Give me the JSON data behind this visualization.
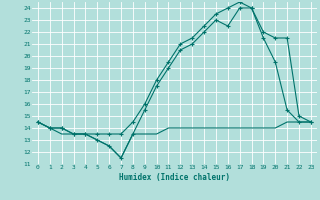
{
  "xlabel": "Humidex (Indice chaleur)",
  "background_color": "#b2dfdb",
  "grid_color": "#ffffff",
  "line_color": "#00736b",
  "xlim": [
    -0.5,
    23.5
  ],
  "ylim": [
    11,
    24.5
  ],
  "xticks": [
    0,
    1,
    2,
    3,
    4,
    5,
    6,
    7,
    8,
    9,
    10,
    11,
    12,
    13,
    14,
    15,
    16,
    17,
    18,
    19,
    20,
    21,
    22,
    23
  ],
  "yticks": [
    11,
    12,
    13,
    14,
    15,
    16,
    17,
    18,
    19,
    20,
    21,
    22,
    23,
    24
  ],
  "series1_x": [
    0,
    1,
    2,
    3,
    4,
    5,
    6,
    7,
    8,
    9,
    10,
    11,
    12,
    13,
    14,
    15,
    16,
    17,
    18,
    19,
    20,
    21,
    22,
    23
  ],
  "series1_y": [
    14.5,
    14.0,
    14.0,
    13.5,
    13.5,
    13.0,
    12.5,
    11.5,
    13.5,
    15.5,
    17.5,
    19.0,
    20.5,
    21.0,
    22.0,
    23.0,
    22.5,
    24.0,
    24.0,
    21.5,
    19.5,
    15.5,
    14.5,
    14.5
  ],
  "series2_x": [
    0,
    1,
    2,
    3,
    4,
    5,
    6,
    7,
    8,
    9,
    10,
    11,
    12,
    13,
    14,
    15,
    16,
    17,
    18,
    19,
    20,
    21,
    22,
    23
  ],
  "series2_y": [
    14.5,
    14.0,
    14.0,
    13.5,
    13.5,
    13.5,
    13.5,
    13.5,
    14.5,
    16.0,
    18.0,
    19.5,
    21.0,
    21.5,
    22.5,
    23.5,
    24.0,
    24.5,
    24.0,
    22.0,
    21.5,
    21.5,
    15.0,
    14.5
  ],
  "series3_x": [
    0,
    1,
    2,
    3,
    4,
    5,
    6,
    7,
    8,
    9,
    10,
    11,
    12,
    13,
    14,
    15,
    16,
    17,
    18,
    19,
    20,
    21,
    22,
    23
  ],
  "series3_y": [
    14.5,
    14.0,
    13.5,
    13.5,
    13.5,
    13.0,
    12.5,
    11.5,
    13.5,
    13.5,
    13.5,
    14.0,
    14.0,
    14.0,
    14.0,
    14.0,
    14.0,
    14.0,
    14.0,
    14.0,
    14.0,
    14.5,
    14.5,
    14.5
  ]
}
